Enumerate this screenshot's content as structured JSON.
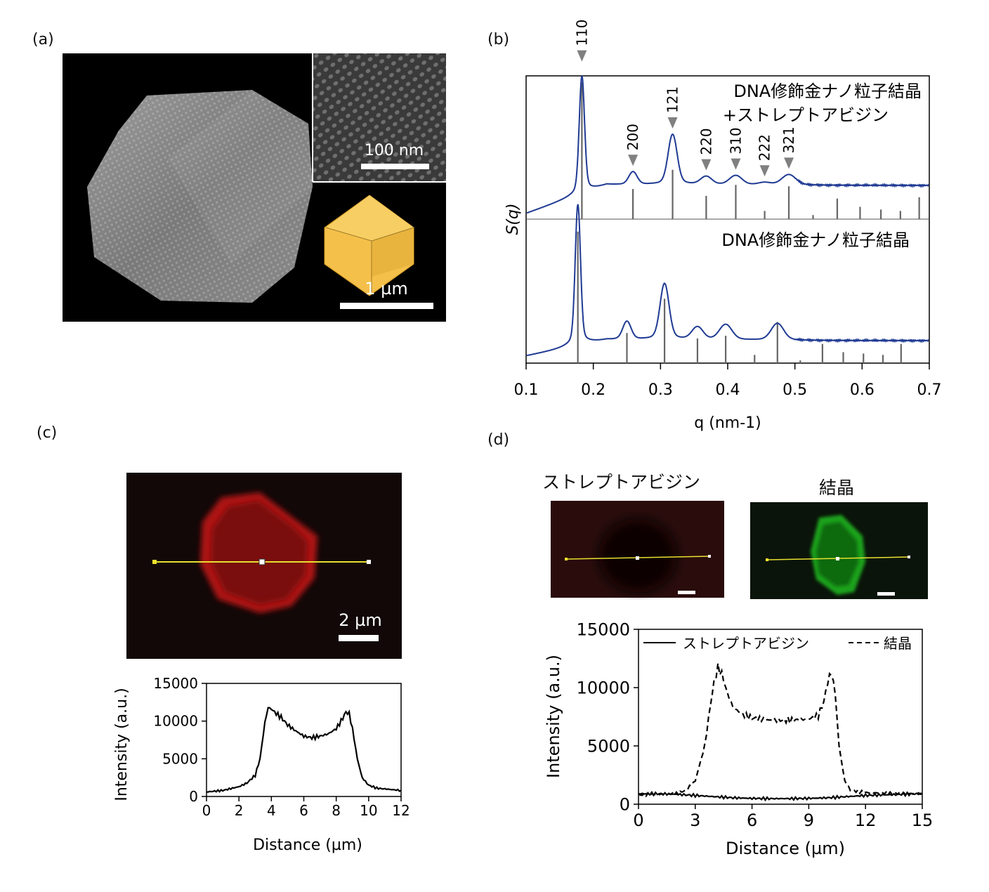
{
  "panels": {
    "a": {
      "label": "(a)",
      "inset_scale": "100 nm",
      "scale": "1 µm"
    },
    "b": {
      "label": "(b)"
    },
    "c": {
      "label": "(c)",
      "scale": "2 µm"
    },
    "d": {
      "label": "(d)",
      "img_left_title": "ストレプトアビジン",
      "img_right_title": "結晶"
    }
  },
  "chart_data": [
    {
      "id": "b",
      "type": "line",
      "xlabel": "q (nm-1)",
      "ylabel": "S(q)",
      "xlim": [
        0.1,
        0.7
      ],
      "xticks": [
        0.1,
        0.2,
        0.3,
        0.4,
        0.5,
        0.6,
        0.7
      ],
      "line_color": "#1f3a93",
      "stick_color": "#666666",
      "upper": {
        "label_line1": "DNA修飾金ナノ粒子結晶",
        "label_line2": "+ストレプトアビジン",
        "peaks": [
          {
            "hkl": "110",
            "q": 0.183,
            "h": 1.0,
            "w": 0.0038
          },
          {
            "hkl": "200",
            "q": 0.259,
            "h": 0.11,
            "w": 0.006
          },
          {
            "hkl": "121",
            "q": 0.318,
            "h": 0.43,
            "w": 0.0065
          },
          {
            "hkl": "220",
            "q": 0.368,
            "h": 0.07,
            "w": 0.008
          },
          {
            "hkl": "310",
            "q": 0.412,
            "h": 0.08,
            "w": 0.009
          },
          {
            "hkl": "222",
            "q": 0.455,
            "h": 0.02,
            "w": 0.009
          },
          {
            "hkl": "321",
            "q": 0.491,
            "h": 0.09,
            "w": 0.01
          }
        ],
        "sticks": [
          {
            "q": 0.183,
            "h": 1.0
          },
          {
            "q": 0.259,
            "h": 0.22
          },
          {
            "q": 0.318,
            "h": 0.36
          },
          {
            "q": 0.368,
            "h": 0.17
          },
          {
            "q": 0.412,
            "h": 0.25
          },
          {
            "q": 0.455,
            "h": 0.06
          },
          {
            "q": 0.491,
            "h": 0.24
          },
          {
            "q": 0.527,
            "h": 0.03
          },
          {
            "q": 0.563,
            "h": 0.15
          },
          {
            "q": 0.597,
            "h": 0.09
          },
          {
            "q": 0.628,
            "h": 0.07
          },
          {
            "q": 0.657,
            "h": 0.06
          },
          {
            "q": 0.685,
            "h": 0.16
          }
        ]
      },
      "lower": {
        "label": "DNA修飾金ナノ粒子結晶",
        "peaks": [
          {
            "q": 0.177,
            "h": 1.0,
            "w": 0.0038
          },
          {
            "q": 0.25,
            "h": 0.13,
            "w": 0.006
          },
          {
            "q": 0.306,
            "h": 0.4,
            "w": 0.0065
          },
          {
            "q": 0.355,
            "h": 0.09,
            "w": 0.008
          },
          {
            "q": 0.397,
            "h": 0.11,
            "w": 0.009
          },
          {
            "q": 0.474,
            "h": 0.12,
            "w": 0.009
          }
        ],
        "sticks": [
          {
            "q": 0.177,
            "h": 0.96
          },
          {
            "q": 0.25,
            "h": 0.22
          },
          {
            "q": 0.306,
            "h": 0.47
          },
          {
            "q": 0.355,
            "h": 0.18
          },
          {
            "q": 0.397,
            "h": 0.2
          },
          {
            "q": 0.44,
            "h": 0.06
          },
          {
            "q": 0.474,
            "h": 0.3
          },
          {
            "q": 0.508,
            "h": 0.02
          },
          {
            "q": 0.541,
            "h": 0.14
          },
          {
            "q": 0.572,
            "h": 0.08
          },
          {
            "q": 0.602,
            "h": 0.07
          },
          {
            "q": 0.631,
            "h": 0.06
          },
          {
            "q": 0.658,
            "h": 0.14
          }
        ]
      }
    },
    {
      "id": "c",
      "type": "line",
      "xlabel": "Distance (µm)",
      "ylabel": "Intensity (a.u.)",
      "xlim": [
        0,
        12
      ],
      "ylim": [
        0,
        15000
      ],
      "xticks": [
        0,
        2,
        4,
        6,
        8,
        10,
        12
      ],
      "yticks": [
        0,
        5000,
        10000,
        15000
      ],
      "series": [
        {
          "x": [
            0,
            1,
            2,
            2.5,
            3,
            3.3,
            3.6,
            3.8,
            4.0,
            4.3,
            4.6,
            5.0,
            5.5,
            6.0,
            6.5,
            7.0,
            7.5,
            8.0,
            8.3,
            8.6,
            8.8,
            9.0,
            9.3,
            9.6,
            10,
            10.5,
            11,
            12
          ],
          "y": [
            600,
            800,
            1300,
            1800,
            2800,
            5000,
            9800,
            11800,
            11600,
            11000,
            10500,
            9500,
            8700,
            8000,
            7800,
            8000,
            8300,
            9000,
            10000,
            11200,
            11000,
            9000,
            5000,
            2500,
            1500,
            1100,
            1000,
            800
          ]
        }
      ]
    },
    {
      "id": "d",
      "type": "line",
      "xlabel": "Distance (µm)",
      "ylabel": "Intensity (a.u.)",
      "xlim": [
        0,
        15
      ],
      "ylim": [
        0,
        15000
      ],
      "xticks": [
        0,
        3,
        6,
        9,
        12,
        15
      ],
      "yticks": [
        0,
        5000,
        10000,
        15000
      ],
      "series": [
        {
          "name": "ストレプトアビジン",
          "dash": "solid",
          "x": [
            0,
            1,
            2,
            3,
            4,
            5,
            6,
            7,
            8,
            9,
            10,
            11,
            12,
            13,
            14,
            15
          ],
          "y": [
            900,
            900,
            850,
            750,
            650,
            550,
            500,
            480,
            480,
            500,
            550,
            650,
            750,
            800,
            850,
            900
          ]
        },
        {
          "name": "結晶",
          "dash": "dashed",
          "x": [
            0,
            2,
            2.5,
            3,
            3.5,
            3.8,
            4.0,
            4.2,
            4.4,
            4.7,
            5.0,
            5.5,
            6,
            7,
            8,
            9,
            9.5,
            9.8,
            10.0,
            10.2,
            10.4,
            10.6,
            10.9,
            11.2,
            12,
            13,
            15
          ],
          "y": [
            800,
            900,
            1200,
            2000,
            5000,
            8500,
            10500,
            11700,
            11200,
            9500,
            8300,
            7700,
            7400,
            7200,
            7200,
            7300,
            7600,
            8800,
            10500,
            11300,
            9500,
            5000,
            2000,
            1200,
            1000,
            950,
            900
          ]
        }
      ]
    }
  ]
}
